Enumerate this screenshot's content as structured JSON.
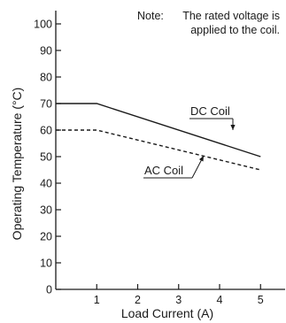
{
  "chart_data": {
    "type": "line",
    "xlabel": "Load Current (A)",
    "ylabel": "Operating Temperature (°C)",
    "xlim": [
      0,
      5.6
    ],
    "ylim": [
      0,
      105
    ],
    "xticks": [
      1,
      2,
      3,
      4,
      5
    ],
    "yticks": [
      0,
      10,
      20,
      30,
      40,
      50,
      60,
      70,
      80,
      90,
      100
    ],
    "grid": false,
    "note": {
      "prefix": "Note:",
      "line1": "The rated voltage is",
      "line2": "applied to the coil."
    },
    "series": [
      {
        "name": "DC Coil",
        "style": "solid",
        "color": "#1a1a1a",
        "x": [
          0,
          1,
          5
        ],
        "y": [
          70,
          70,
          50
        ]
      },
      {
        "name": "AC Coil",
        "style": "dashed",
        "color": "#1a1a1a",
        "x": [
          0,
          1,
          5
        ],
        "y": [
          60,
          60,
          45
        ]
      }
    ]
  }
}
